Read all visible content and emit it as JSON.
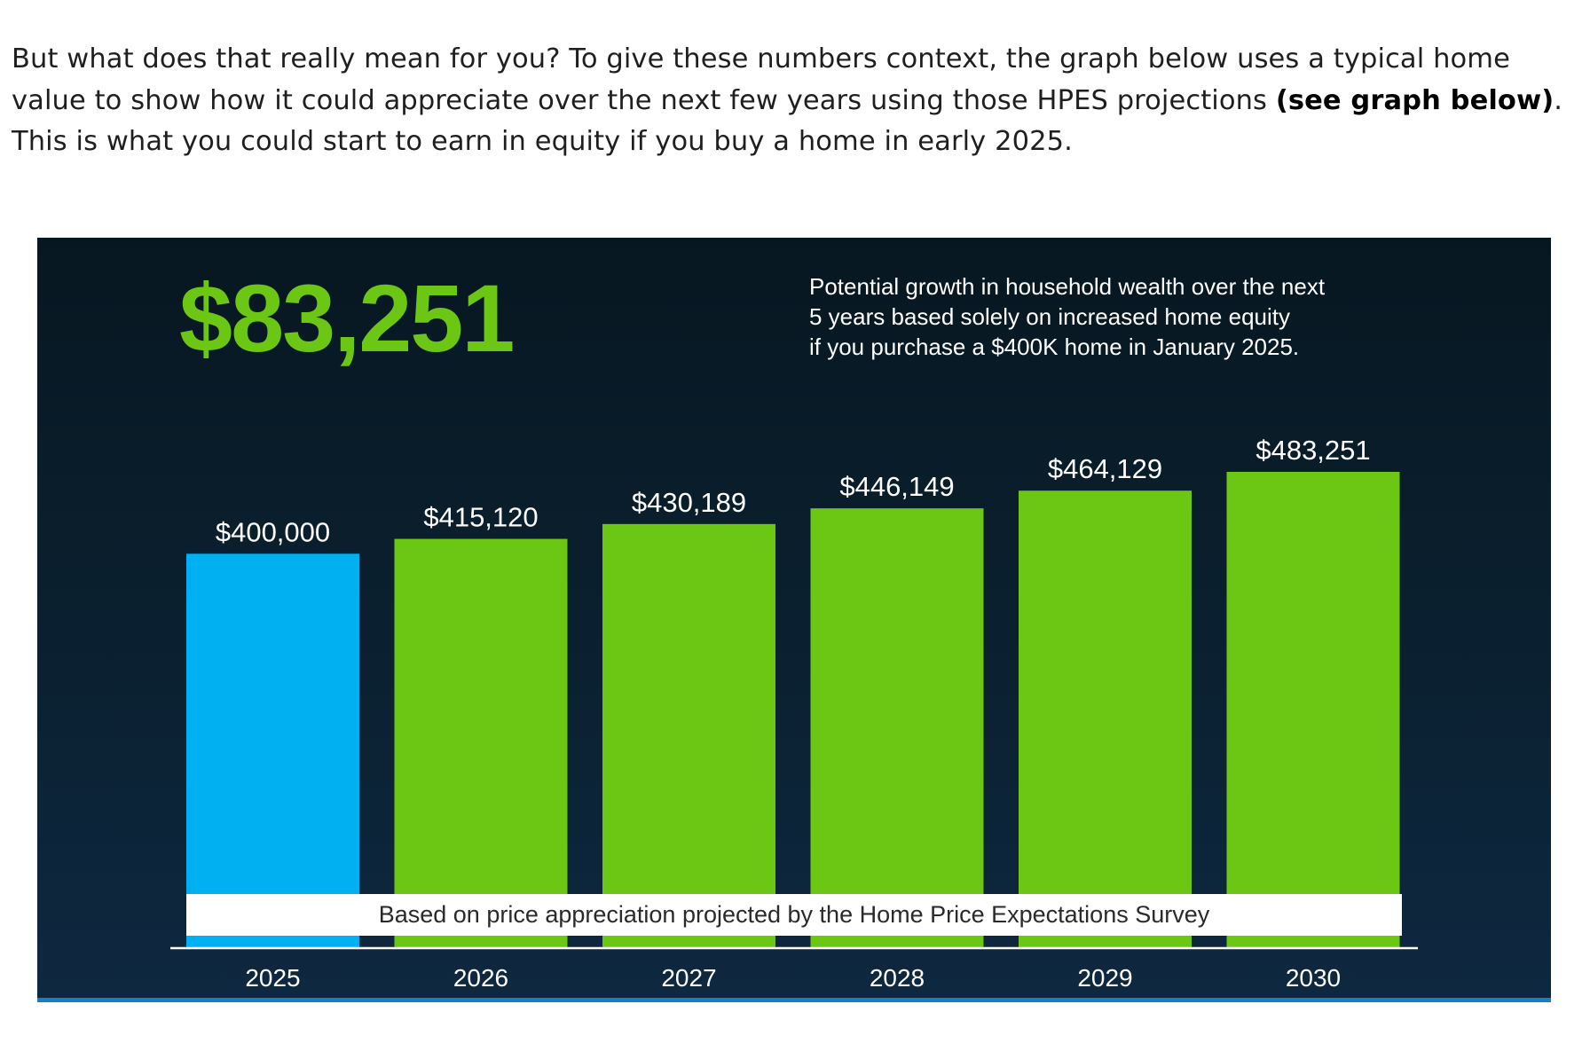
{
  "intro": {
    "text_1": "But what does that really mean for you? To give these numbers context, the graph below uses a typical home value to show how it could appreciate over the next few years using those HPES projections ",
    "bold_1": "(see graph below)",
    "text_2": ". This is what you could start to earn in equity if you buy a home in early 2025."
  },
  "chart": {
    "headline_value": "$83,251",
    "caption_lines": [
      "Potential growth in household wealth over the next",
      "5 years based solely on increased home equity",
      "if you purchase a $400K home in January 2025."
    ],
    "footnote": "Based on price appreciation projected by the Home Price Expectations Survey"
  },
  "chart_data": {
    "type": "bar",
    "categories": [
      "2025",
      "2026",
      "2027",
      "2028",
      "2029",
      "2030"
    ],
    "values": [
      400000,
      415120,
      430189,
      446149,
      464129,
      483251
    ],
    "data_labels": [
      "$400,000",
      "$415,120",
      "$430,189",
      "$446,149",
      "$464,129",
      "$483,251"
    ],
    "bar_colors": [
      "#00b0f0",
      "#6cc614",
      "#6cc614",
      "#6cc614",
      "#6cc614",
      "#6cc614"
    ],
    "background_color": "#0a1f2e",
    "title": "",
    "xlabel": "",
    "ylabel": "",
    "ylim": [
      0,
      483251
    ],
    "grid": false,
    "legend": "none"
  }
}
